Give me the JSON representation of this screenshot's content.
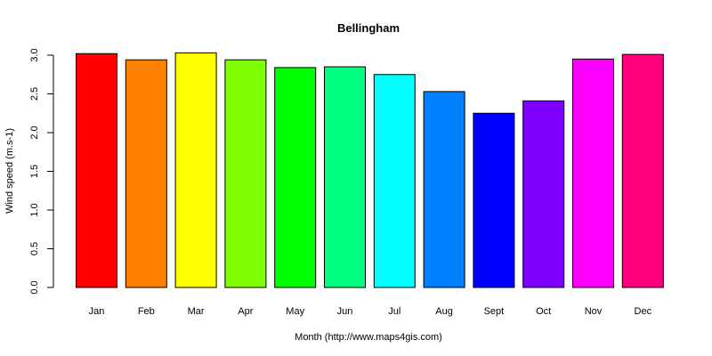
{
  "chart_data": {
    "type": "bar",
    "title": "Bellingham",
    "xlabel": "Month (http://www.maps4gis.com)",
    "ylabel": "Wind speed (m.s-1)",
    "categories": [
      "Jan",
      "Feb",
      "Mar",
      "Apr",
      "May",
      "Jun",
      "Jul",
      "Aug",
      "Sept",
      "Oct",
      "Nov",
      "Dec"
    ],
    "values": [
      3.02,
      2.94,
      3.03,
      2.94,
      2.84,
      2.85,
      2.75,
      2.53,
      2.25,
      2.41,
      2.95,
      3.01
    ],
    "colors": [
      "#FF0000",
      "#FF8000",
      "#FFFF00",
      "#80FF00",
      "#00FF00",
      "#00FF80",
      "#00FFFF",
      "#0080FF",
      "#0000FF",
      "#8000FF",
      "#FF00FF",
      "#FF0080"
    ],
    "yticks": [
      "0.0",
      "0.5",
      "1.0",
      "1.5",
      "2.0",
      "2.5",
      "3.0"
    ],
    "ylim": [
      0,
      3.0
    ],
    "grid": false,
    "legend": null
  }
}
